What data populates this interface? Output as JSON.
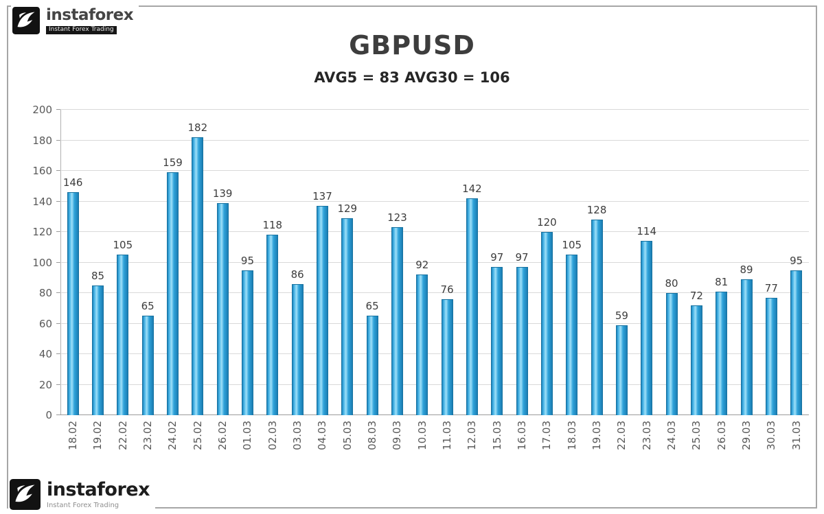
{
  "branding": {
    "name": "instaforex",
    "tagline": "Instant Forex Trading"
  },
  "chart_data": {
    "type": "bar",
    "title": "GBPUSD",
    "subtitle": "AVG5 = 83 AVG30 = 106",
    "avg5": 83,
    "avg30": 106,
    "categories": [
      "18.02",
      "19.02",
      "22.02",
      "23.02",
      "24.02",
      "25.02",
      "26.02",
      "01.03",
      "02.03",
      "03.03",
      "04.03",
      "05.03",
      "08.03",
      "09.03",
      "10.03",
      "11.03",
      "12.03",
      "15.03",
      "16.03",
      "17.03",
      "18.03",
      "19.03",
      "22.03",
      "23.03",
      "24.03",
      "25.03",
      "26.03",
      "29.03",
      "30.03",
      "31.03"
    ],
    "values": [
      146,
      85,
      105,
      65,
      159,
      182,
      139,
      95,
      118,
      86,
      137,
      129,
      65,
      123,
      92,
      76,
      142,
      97,
      97,
      120,
      105,
      128,
      59,
      114,
      80,
      72,
      81,
      89,
      77,
      95
    ],
    "ylim": [
      0,
      200
    ],
    "ytick_step": 20,
    "grid": true,
    "legend_position": "none",
    "bar_color": "#35a8e0",
    "gridline_color": "#d9d9d9",
    "label_color": "#3c3c3c",
    "axis_label_color": "#595959"
  }
}
